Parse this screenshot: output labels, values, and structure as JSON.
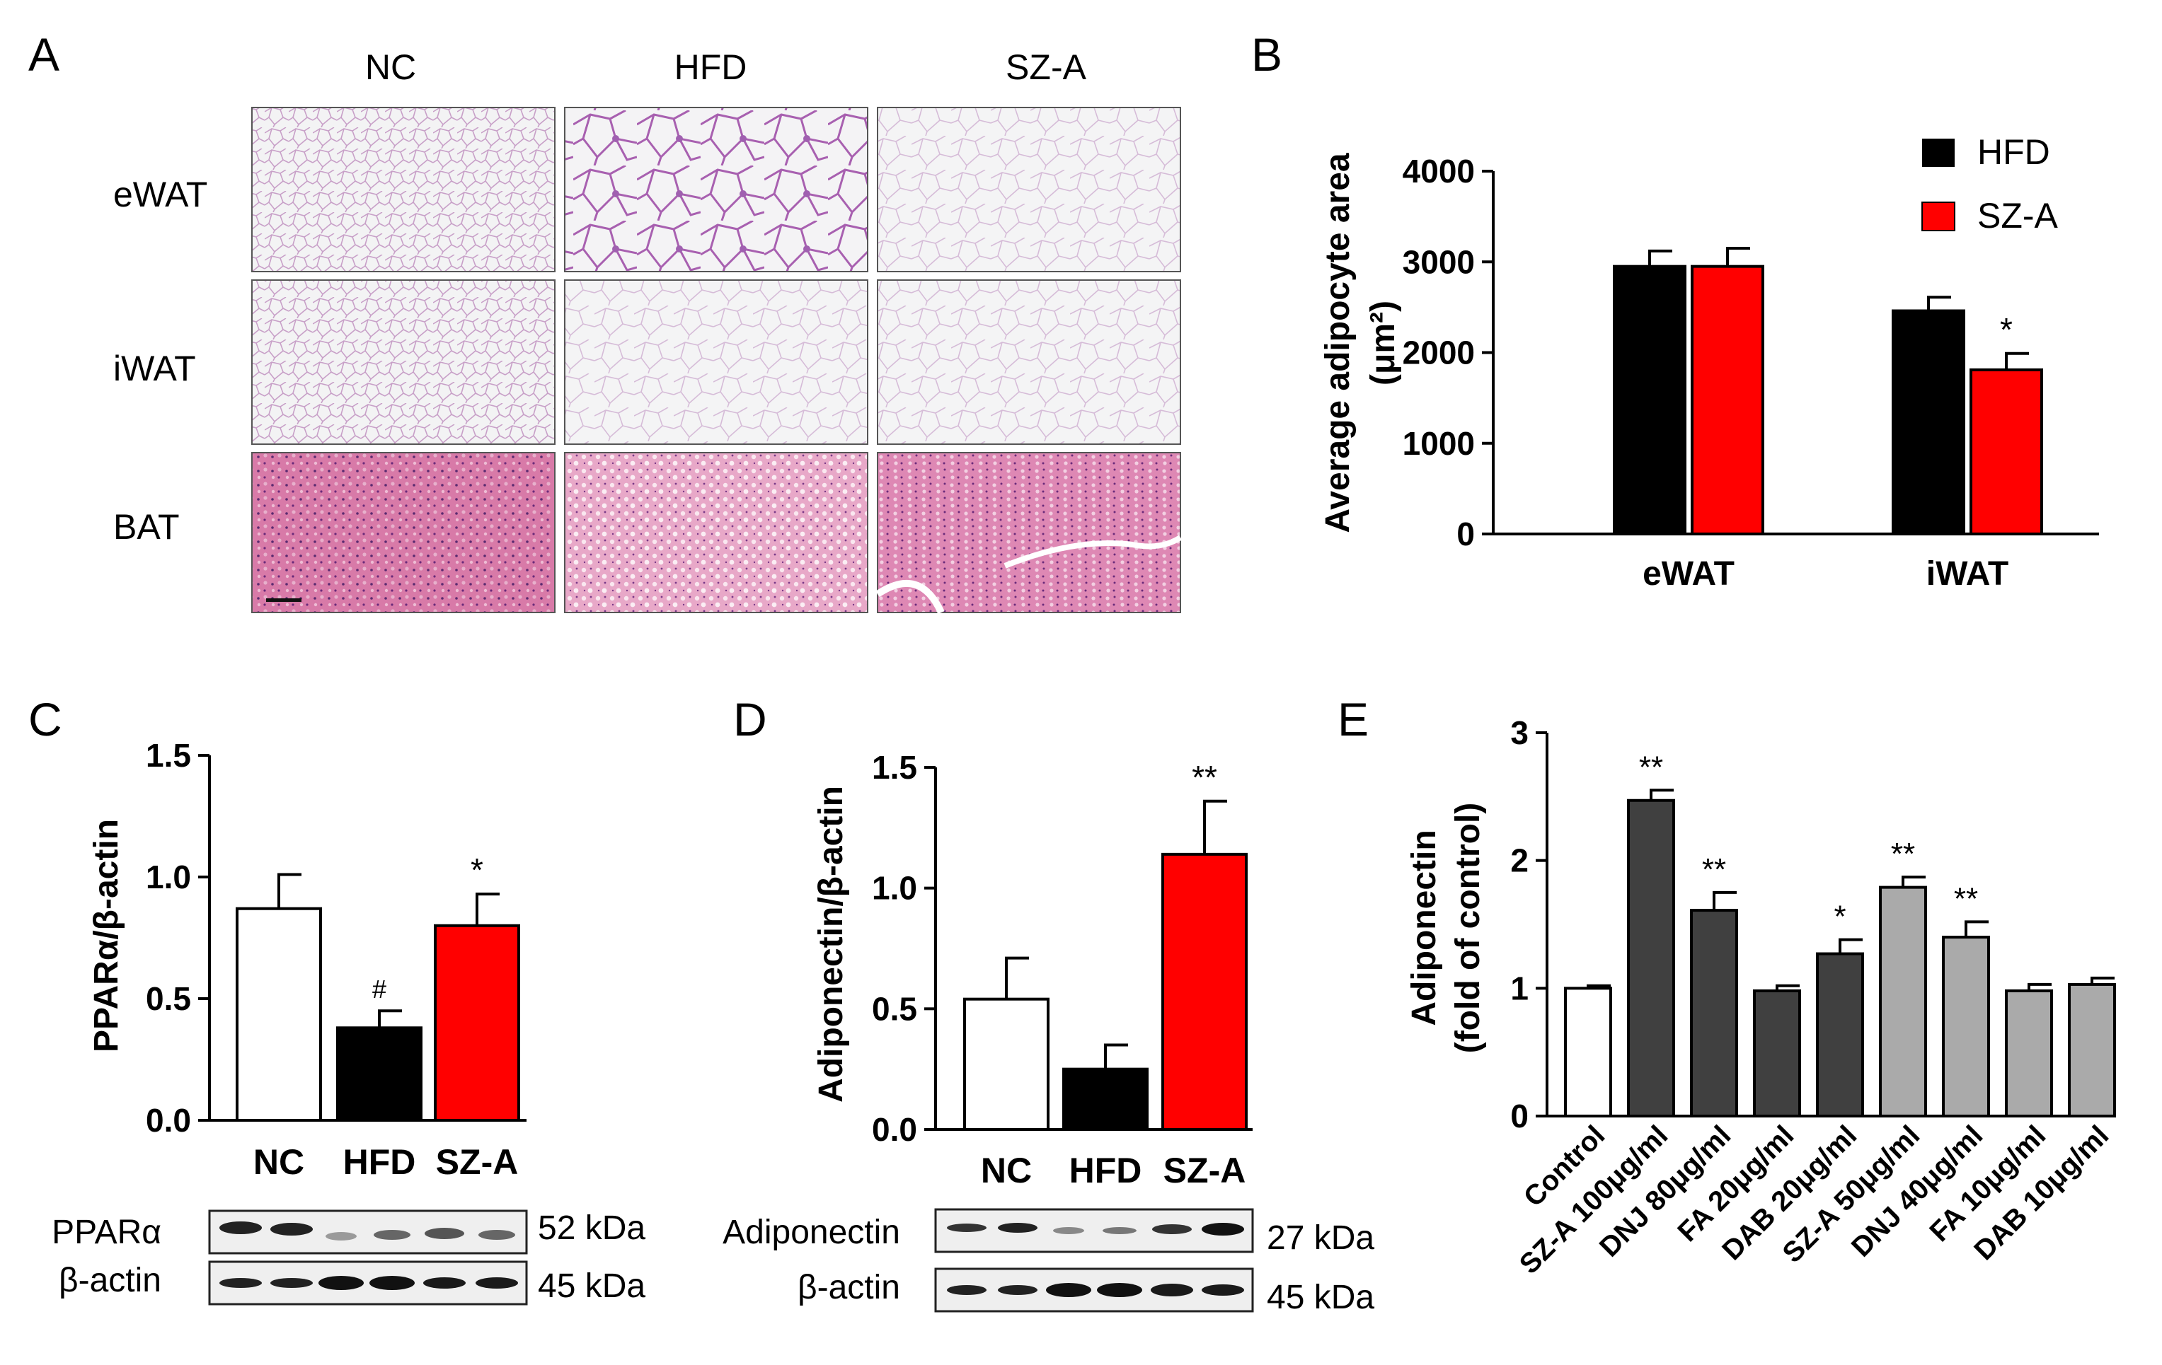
{
  "panels": {
    "A": {
      "label": "A",
      "columns": [
        "NC",
        "HFD",
        "SZ-A"
      ],
      "rows": [
        "eWAT",
        "iWAT",
        "BAT"
      ]
    },
    "B": {
      "label": "B"
    },
    "C": {
      "label": "C"
    },
    "D": {
      "label": "D"
    },
    "E": {
      "label": "E"
    }
  },
  "chart_data": [
    {
      "id": "B",
      "type": "bar",
      "ylabel_line1": "Average adipocyte area",
      "ylabel_line2": "(μm²)",
      "categories": [
        "eWAT",
        "iWAT"
      ],
      "ylim": [
        0,
        4000
      ],
      "yticks": [
        "0",
        "1000",
        "2000",
        "3000",
        "4000"
      ],
      "legend_position": "top-right",
      "series": [
        {
          "name": "HFD",
          "color": "#000000",
          "values": [
            2950,
            2460
          ],
          "errors": [
            170,
            150
          ]
        },
        {
          "name": "SZ-A",
          "color": "#ff0000",
          "values": [
            2950,
            1810
          ],
          "errors": [
            200,
            180
          ],
          "annotations": [
            "",
            "*"
          ]
        }
      ]
    },
    {
      "id": "C",
      "type": "bar",
      "ylabel": "PPARα/β-actin",
      "categories": [
        "NC",
        "HFD",
        "SZ-A"
      ],
      "values": [
        0.87,
        0.38,
        0.8
      ],
      "errors": [
        0.14,
        0.07,
        0.13
      ],
      "fills": [
        "#ffffff",
        "#000000",
        "#ff0000"
      ],
      "annotations": [
        "",
        "#",
        "*"
      ],
      "ylim": [
        0,
        1.5
      ],
      "yticks": [
        "0.0",
        "0.5",
        "1.0",
        "1.5"
      ],
      "blot": {
        "rows": [
          {
            "label": "PPARα",
            "size": "52 kDa"
          },
          {
            "label": "β-actin",
            "size": "45 kDa"
          }
        ]
      }
    },
    {
      "id": "D",
      "type": "bar",
      "ylabel": "Adiponectin/β-actin",
      "categories": [
        "NC",
        "HFD",
        "SZ-A"
      ],
      "values": [
        0.54,
        0.25,
        1.14
      ],
      "errors": [
        0.17,
        0.1,
        0.22
      ],
      "fills": [
        "#ffffff",
        "#000000",
        "#ff0000"
      ],
      "annotations": [
        "",
        "",
        "**"
      ],
      "ylim": [
        0,
        1.5
      ],
      "yticks": [
        "0.0",
        "0.5",
        "1.0",
        "1.5"
      ],
      "blot": {
        "rows": [
          {
            "label": "Adiponectin",
            "size": "27 kDa"
          },
          {
            "label": "β-actin",
            "size": "45 kDa"
          }
        ]
      }
    },
    {
      "id": "E",
      "type": "bar",
      "ylabel_line1": "Adiponectin",
      "ylabel_line2": "(fold of control)",
      "categories": [
        "Control",
        "SZ-A 100μg/ml",
        "DNJ 80μg/ml",
        "FA 20μg/ml",
        "DAB 20μg/ml",
        "SZ-A 50μg/ml",
        "DNJ 40μg/ml",
        "FA 10μg/ml",
        "DAB 10μg/ml"
      ],
      "values": [
        1.0,
        2.47,
        1.61,
        0.98,
        1.27,
        1.79,
        1.4,
        0.98,
        1.03
      ],
      "errors": [
        0.02,
        0.08,
        0.14,
        0.04,
        0.11,
        0.08,
        0.12,
        0.05,
        0.05
      ],
      "fills": [
        "#ffffff",
        "#404040",
        "#404040",
        "#404040",
        "#404040",
        "#aaaaaa",
        "#aaaaaa",
        "#aaaaaa",
        "#aaaaaa"
      ],
      "annotations": [
        "",
        "**",
        "**",
        "",
        "*",
        "**",
        "**",
        "",
        ""
      ],
      "ylim": [
        0,
        3
      ],
      "yticks": [
        "0",
        "1",
        "2",
        "3"
      ]
    }
  ]
}
